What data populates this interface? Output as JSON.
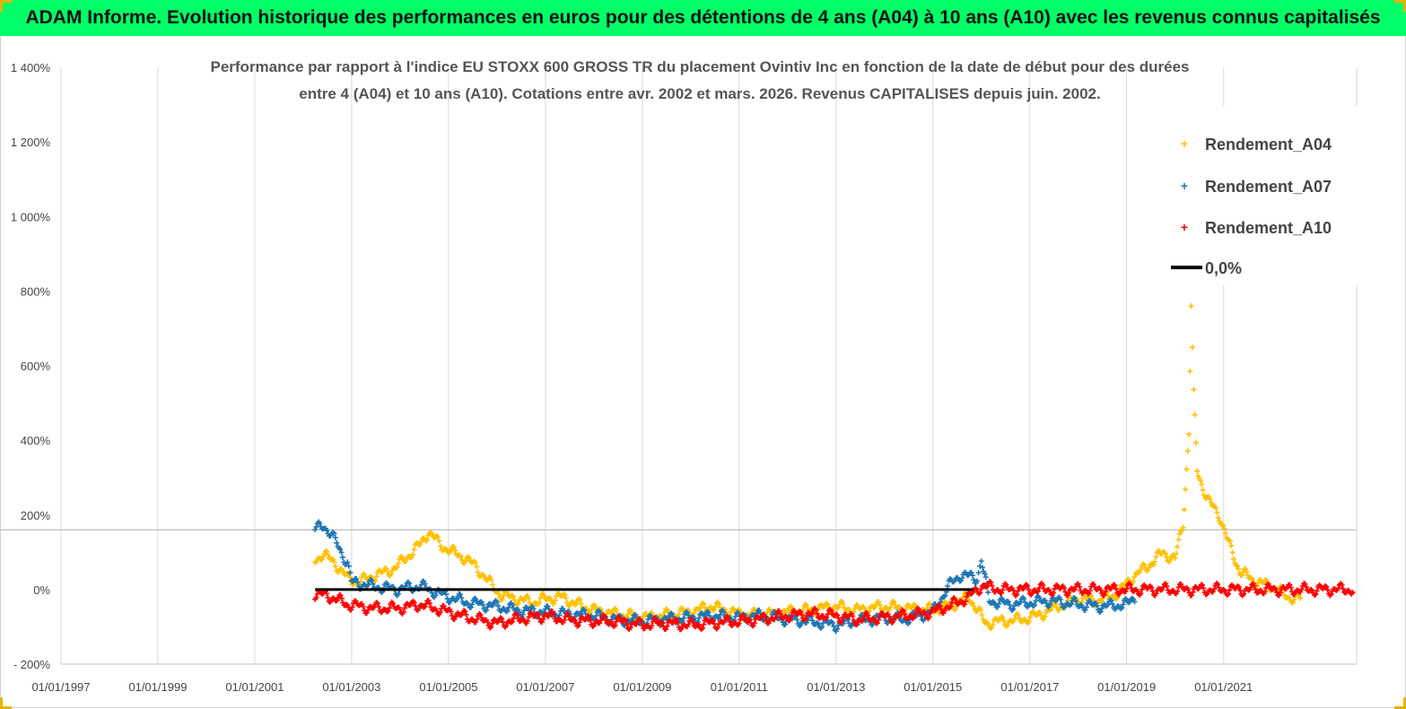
{
  "banner": {
    "title": "ADAM Informe. Evolution historique des performances en euros pour des détentions de 4 ans (A04) à 10 ans (A10) avec les revenus connus capitalisés"
  },
  "chart_data": {
    "type": "scatter",
    "title_line1": "Performance par rapport à l'indice EU STOXX 600 GROSS TR  du placement Ovintiv Inc en fonction de la date de début pour des durées",
    "title_line2": "entre 4 (A04) et 10 ans (A10). Cotations entre avr. 2002 et mars. 2026. Revenus CAPITALISES depuis juin. 2002.",
    "xlabel": "",
    "ylabel": "",
    "xlim": [
      "1997-01-01",
      "2023-10-01"
    ],
    "ylim": [
      -200,
      1400
    ],
    "x_tick_labels": [
      "01/01/1997",
      "01/01/1999",
      "01/01/2001",
      "01/01/2003",
      "01/01/2005",
      "01/01/2007",
      "01/01/2009",
      "01/01/2011",
      "01/01/2013",
      "01/01/2015",
      "01/01/2017",
      "01/01/2019",
      "01/01/2021"
    ],
    "x_tick_dates": [
      "1997-01-01",
      "1999-01-01",
      "2001-01-01",
      "2003-01-01",
      "2005-01-01",
      "2007-01-01",
      "2009-01-01",
      "2011-01-01",
      "2013-01-01",
      "2015-01-01",
      "2017-01-01",
      "2019-01-01",
      "2021-01-01"
    ],
    "y_ticks": [
      -200,
      0,
      200,
      400,
      600,
      800,
      1000,
      1200,
      1400
    ],
    "y_tick_labels": [
      "- 200%",
      "0%",
      "200%",
      "400%",
      "600%",
      "800%",
      "1 000%",
      "1 200%",
      "1 400%"
    ],
    "grid": "vertical",
    "reference_line_y": 160,
    "legend_position": "top-right",
    "series": [
      {
        "name": "Rendement_A04",
        "color": "#ffc000",
        "marker": "+",
        "points": [
          [
            "2002-04-01",
            80
          ],
          [
            "2002-06-01",
            95
          ],
          [
            "2002-09-01",
            70
          ],
          [
            "2002-12-01",
            30
          ],
          [
            "2003-03-01",
            20
          ],
          [
            "2003-06-01",
            35
          ],
          [
            "2003-09-01",
            45
          ],
          [
            "2003-12-01",
            60
          ],
          [
            "2004-03-01",
            90
          ],
          [
            "2004-06-01",
            120
          ],
          [
            "2004-08-01",
            155
          ],
          [
            "2004-11-01",
            120
          ],
          [
            "2005-02-01",
            100
          ],
          [
            "2005-05-01",
            85
          ],
          [
            "2005-08-01",
            60
          ],
          [
            "2005-11-01",
            20
          ],
          [
            "2006-02-01",
            -15
          ],
          [
            "2006-06-01",
            -25
          ],
          [
            "2006-10-01",
            -35
          ],
          [
            "2007-01-01",
            -25
          ],
          [
            "2007-05-01",
            -20
          ],
          [
            "2007-09-01",
            -40
          ],
          [
            "2008-01-01",
            -55
          ],
          [
            "2008-06-01",
            -65
          ],
          [
            "2009-01-01",
            -75
          ],
          [
            "2009-06-01",
            -70
          ],
          [
            "2010-01-01",
            -60
          ],
          [
            "2010-06-01",
            -45
          ],
          [
            "2011-01-01",
            -65
          ],
          [
            "2011-06-01",
            -70
          ],
          [
            "2012-01-01",
            -60
          ],
          [
            "2012-06-01",
            -55
          ],
          [
            "2013-01-01",
            -45
          ],
          [
            "2013-06-01",
            -55
          ],
          [
            "2014-01-01",
            -45
          ],
          [
            "2014-06-01",
            -50
          ],
          [
            "2015-01-01",
            -55
          ],
          [
            "2015-06-01",
            -40
          ],
          [
            "2015-10-01",
            -20
          ],
          [
            "2016-02-01",
            -90
          ],
          [
            "2016-06-01",
            -85
          ],
          [
            "2016-11-01",
            -80
          ],
          [
            "2017-03-01",
            -70
          ],
          [
            "2017-08-01",
            -45
          ],
          [
            "2018-01-01",
            -25
          ],
          [
            "2018-06-01",
            -30
          ],
          [
            "2018-11-01",
            -10
          ],
          [
            "2019-02-01",
            30
          ],
          [
            "2019-06-01",
            60
          ],
          [
            "2019-10-01",
            100
          ],
          [
            "2020-01-01",
            80
          ],
          [
            "2020-03-01",
            180
          ],
          [
            "2020-04-15",
            420
          ],
          [
            "2020-05-01",
            760
          ],
          [
            "2020-05-20",
            520
          ],
          [
            "2020-06-15",
            320
          ],
          [
            "2020-09-01",
            240
          ],
          [
            "2020-12-01",
            200
          ],
          [
            "2021-02-01",
            130
          ],
          [
            "2021-05-01",
            50
          ],
          [
            "2021-09-01",
            20
          ],
          [
            "2022-01-01",
            10
          ],
          [
            "2022-05-01",
            -20
          ],
          [
            "2022-08-01",
            -25
          ]
        ]
      },
      {
        "name": "Rendement_A07",
        "color": "#1f77b4",
        "marker": "+",
        "points": [
          [
            "2002-04-01",
            160
          ],
          [
            "2002-06-01",
            175
          ],
          [
            "2002-09-01",
            130
          ],
          [
            "2002-12-01",
            70
          ],
          [
            "2003-01-01",
            20
          ],
          [
            "2003-06-01",
            10
          ],
          [
            "2003-12-01",
            0
          ],
          [
            "2004-06-01",
            10
          ],
          [
            "2005-01-01",
            -20
          ],
          [
            "2005-06-01",
            -35
          ],
          [
            "2006-01-01",
            -45
          ],
          [
            "2006-06-01",
            -55
          ],
          [
            "2007-01-01",
            -60
          ],
          [
            "2007-06-01",
            -65
          ],
          [
            "2008-01-01",
            -70
          ],
          [
            "2008-06-01",
            -80
          ],
          [
            "2009-01-01",
            -85
          ],
          [
            "2009-06-01",
            -80
          ],
          [
            "2010-01-01",
            -75
          ],
          [
            "2010-06-01",
            -70
          ],
          [
            "2011-01-01",
            -75
          ],
          [
            "2011-06-01",
            -70
          ],
          [
            "2012-01-01",
            -80
          ],
          [
            "2012-06-01",
            -85
          ],
          [
            "2013-01-01",
            -95
          ],
          [
            "2013-06-01",
            -85
          ],
          [
            "2014-01-01",
            -75
          ],
          [
            "2014-06-01",
            -80
          ],
          [
            "2015-01-01",
            -60
          ],
          [
            "2015-05-01",
            10
          ],
          [
            "2015-08-01",
            40
          ],
          [
            "2015-12-01",
            30
          ],
          [
            "2016-01-01",
            80
          ],
          [
            "2016-03-01",
            -30
          ],
          [
            "2016-08-01",
            -40
          ],
          [
            "2017-01-01",
            -35
          ],
          [
            "2017-06-01",
            -30
          ],
          [
            "2018-01-01",
            -40
          ],
          [
            "2018-06-01",
            -45
          ],
          [
            "2019-01-01",
            -40
          ],
          [
            "2019-03-01",
            -20
          ]
        ]
      },
      {
        "name": "Rendement_A10",
        "color": "#ff0000",
        "marker": "+",
        "points": [
          [
            "2002-04-01",
            -10
          ],
          [
            "2002-08-01",
            -20
          ],
          [
            "2002-12-01",
            -40
          ],
          [
            "2003-06-01",
            -50
          ],
          [
            "2004-01-01",
            -50
          ],
          [
            "2004-06-01",
            -40
          ],
          [
            "2005-01-01",
            -60
          ],
          [
            "2005-06-01",
            -75
          ],
          [
            "2006-01-01",
            -90
          ],
          [
            "2006-06-01",
            -80
          ],
          [
            "2007-01-01",
            -70
          ],
          [
            "2007-06-01",
            -80
          ],
          [
            "2008-01-01",
            -85
          ],
          [
            "2008-06-01",
            -85
          ],
          [
            "2009-01-01",
            -95
          ],
          [
            "2009-06-01",
            -90
          ],
          [
            "2010-01-01",
            -95
          ],
          [
            "2010-06-01",
            -90
          ],
          [
            "2011-01-01",
            -85
          ],
          [
            "2011-06-01",
            -80
          ],
          [
            "2012-01-01",
            -70
          ],
          [
            "2012-06-01",
            -65
          ],
          [
            "2013-01-01",
            -70
          ],
          [
            "2013-06-01",
            -80
          ],
          [
            "2014-01-01",
            -75
          ],
          [
            "2014-06-01",
            -70
          ],
          [
            "2015-01-01",
            -60
          ],
          [
            "2015-06-01",
            -40
          ],
          [
            "2015-10-01",
            -20
          ],
          [
            "2016-01-01",
            10
          ],
          [
            "2016-06-01",
            0
          ],
          [
            "2017-01-01",
            0
          ],
          [
            "2018-01-01",
            0
          ],
          [
            "2019-01-01",
            0
          ],
          [
            "2020-01-01",
            0
          ],
          [
            "2021-01-01",
            0
          ],
          [
            "2022-01-01",
            0
          ],
          [
            "2023-01-01",
            0
          ],
          [
            "2023-09-01",
            0
          ]
        ]
      }
    ],
    "zero_line": {
      "name": "0,0%",
      "color": "#000000",
      "y": 0,
      "x_start": "2002-04-01",
      "x_end": "2015-11-01"
    }
  }
}
